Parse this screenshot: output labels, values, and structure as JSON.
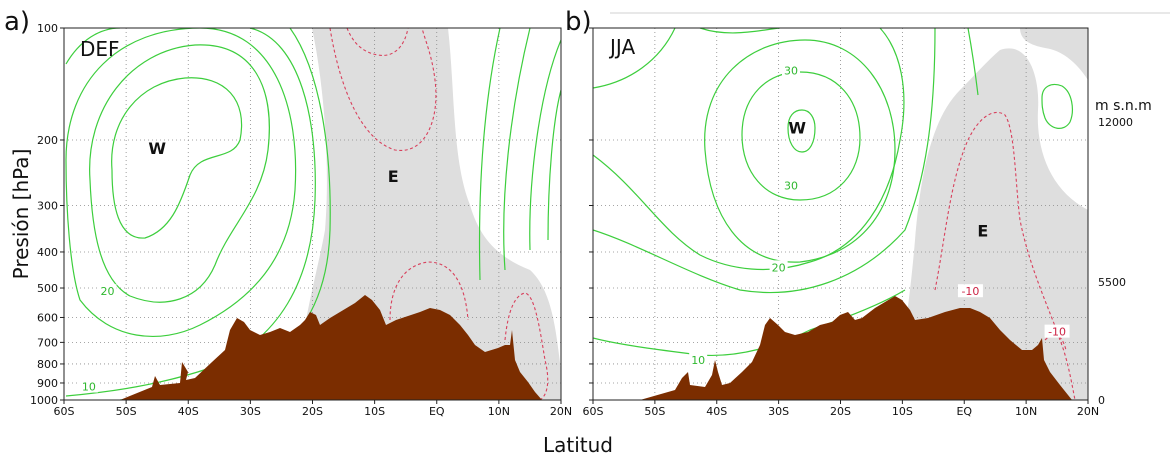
{
  "figure": {
    "ylabel": "Presión [hPa]",
    "xlabel": "Latitud",
    "right_axis_label": "m s.n.m",
    "right_axis_ticks": [
      {
        "p": 200,
        "label": "12000"
      },
      {
        "p": 500,
        "label": "5500"
      },
      {
        "p": 1000,
        "label": "0"
      }
    ]
  },
  "colors": {
    "westerly_contour": "#3dce3d",
    "easterly_contour": "#d8405c",
    "easterly_shading": "#dedede",
    "topography": "#7b2d00",
    "grid": "#888888"
  },
  "chart_data": [
    {
      "type": "contour",
      "panel_letter": "a)",
      "season": "DEF",
      "x_ticks": [
        "60S",
        "50S",
        "40S",
        "30S",
        "20S",
        "10S",
        "EQ",
        "10N",
        "20N"
      ],
      "x": [
        -60,
        -50,
        -40,
        -30,
        -20,
        -10,
        0,
        10,
        20
      ],
      "y_ticks": [
        100,
        200,
        300,
        400,
        500,
        600,
        700,
        800,
        900,
        1000
      ],
      "ylim": [
        1000,
        100
      ],
      "y_scale": "log",
      "grid": true,
      "regions": [
        {
          "label": "W",
          "lat": -45,
          "p": 210
        },
        {
          "label": "E",
          "lat": -7,
          "p": 250
        }
      ],
      "contour_labels": [
        {
          "text": "20",
          "lat": -53,
          "p": 510,
          "sign": "positive"
        },
        {
          "text": "10",
          "lat": -56,
          "p": 920,
          "sign": "positive"
        }
      ]
    },
    {
      "type": "contour",
      "panel_letter": "b)",
      "season": "JJA",
      "x_ticks": [
        "60S",
        "50S",
        "40S",
        "30S",
        "20S",
        "10S",
        "EQ",
        "10N",
        "20N"
      ],
      "x": [
        -60,
        -50,
        -40,
        -30,
        -20,
        -10,
        0,
        10,
        20
      ],
      "y_ticks": [
        100,
        200,
        300,
        400,
        500,
        600,
        700,
        800,
        900,
        1000
      ],
      "ylim": [
        1000,
        100
      ],
      "y_scale": "log",
      "grid": true,
      "regions": [
        {
          "label": "W",
          "lat": -27,
          "p": 185
        },
        {
          "label": "E",
          "lat": 3,
          "p": 350
        }
      ],
      "contour_labels": [
        {
          "text": "30",
          "lat": -28,
          "p": 130,
          "sign": "positive"
        },
        {
          "text": "30",
          "lat": -28,
          "p": 265,
          "sign": "positive"
        },
        {
          "text": "20",
          "lat": -30,
          "p": 440,
          "sign": "positive"
        },
        {
          "text": "10",
          "lat": -43,
          "p": 780,
          "sign": "positive"
        },
        {
          "text": "-10",
          "lat": 1,
          "p": 510,
          "sign": "negative"
        },
        {
          "text": "-10",
          "lat": 15,
          "p": 655,
          "sign": "negative"
        }
      ]
    }
  ]
}
